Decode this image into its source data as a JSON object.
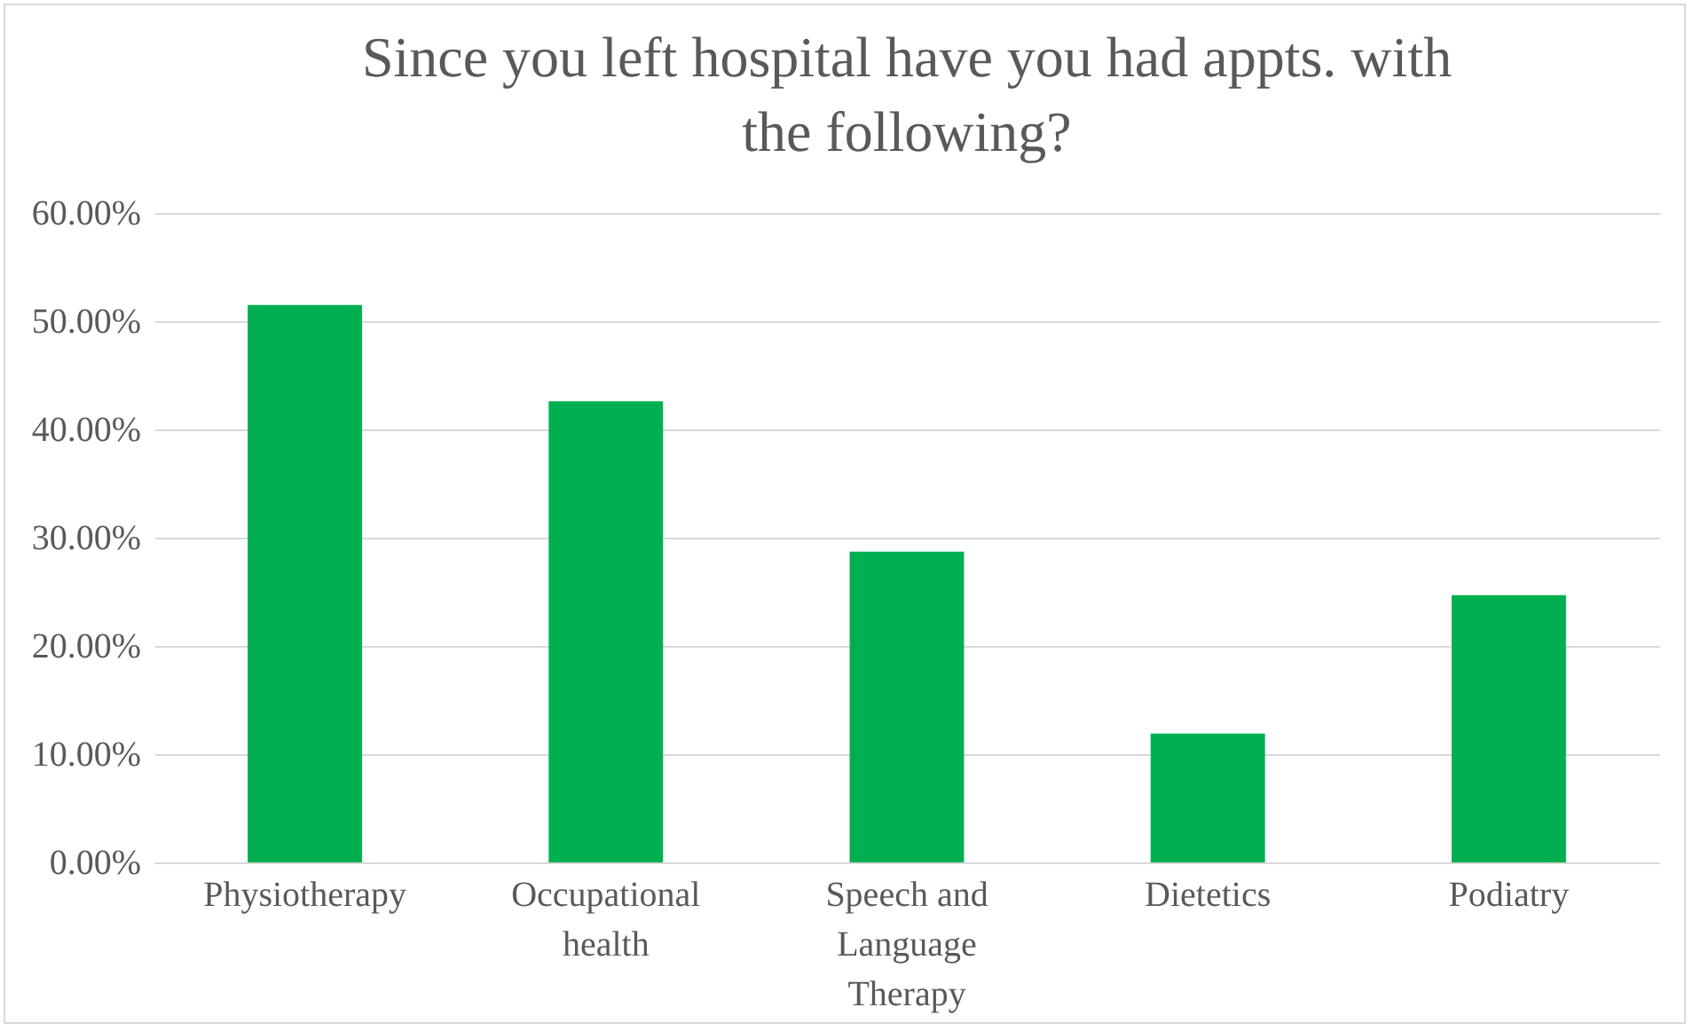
{
  "chart_data": {
    "type": "bar",
    "title": "Since you left hospital have you had appts. with the following?",
    "categories": [
      "Physiotherapy",
      "Occupational health",
      "Speech and Language Therapy",
      "Dietetics",
      "Podiatry"
    ],
    "values": [
      51.5,
      42.6,
      28.7,
      11.9,
      24.7
    ],
    "color": "#00b050",
    "ylim": [
      0,
      60
    ],
    "yticks": [
      {
        "value": 0,
        "label": "0.00%"
      },
      {
        "value": 10,
        "label": "10.00%"
      },
      {
        "value": 20,
        "label": "20.00%"
      },
      {
        "value": 30,
        "label": "30.00%"
      },
      {
        "value": 40,
        "label": "40.00%"
      },
      {
        "value": 50,
        "label": "50.00%"
      },
      {
        "value": 60,
        "label": "60.00%"
      }
    ],
    "grid": "y"
  }
}
